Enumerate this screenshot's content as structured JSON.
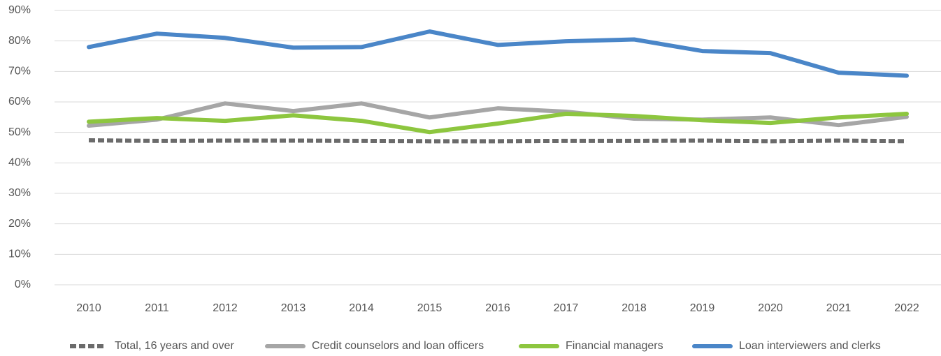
{
  "chart_data": {
    "type": "line",
    "categories": [
      "2010",
      "2011",
      "2012",
      "2013",
      "2014",
      "2015",
      "2016",
      "2017",
      "2018",
      "2019",
      "2020",
      "2021",
      "2022"
    ],
    "series": [
      {
        "name": "Total, 16 years and over",
        "color": "#6b6b6b",
        "dashed": true,
        "values": [
          47.4,
          47.2,
          47.3,
          47.3,
          47.2,
          47.1,
          47.1,
          47.2,
          47.2,
          47.3,
          47.1,
          47.3,
          47.1
        ]
      },
      {
        "name": "Credit counselors and loan officers",
        "color": "#a6a6a6",
        "values": [
          52.2,
          54.2,
          59.5,
          57.0,
          59.5,
          54.9,
          57.9,
          56.8,
          54.5,
          54.2,
          54.9,
          52.4,
          55.1
        ]
      },
      {
        "name": "Financial managers",
        "color": "#8dc63f",
        "values": [
          53.5,
          54.7,
          53.8,
          55.6,
          53.8,
          50.1,
          52.9,
          56.1,
          55.4,
          54.0,
          53.1,
          54.9,
          56.1
        ]
      },
      {
        "name": "Loan interviewers and clerks",
        "color": "#4a86c8",
        "values": [
          78.0,
          82.4,
          81.0,
          77.8,
          78.0,
          83.1,
          78.7,
          79.9,
          80.5,
          76.7,
          76.0,
          69.6,
          68.6
        ]
      }
    ],
    "ylim": [
      0,
      90
    ],
    "yticks": [
      {
        "value": 0,
        "label": "0%"
      },
      {
        "value": 10,
        "label": "10%"
      },
      {
        "value": 20,
        "label": "20%"
      },
      {
        "value": 30,
        "label": "30%"
      },
      {
        "value": 40,
        "label": "40%"
      },
      {
        "value": 50,
        "label": "50%"
      },
      {
        "value": 60,
        "label": "60%"
      },
      {
        "value": 70,
        "label": "70%"
      },
      {
        "value": 80,
        "label": "80%"
      },
      {
        "value": 90,
        "label": "90%"
      }
    ],
    "grid": true,
    "legend": "bottom"
  }
}
